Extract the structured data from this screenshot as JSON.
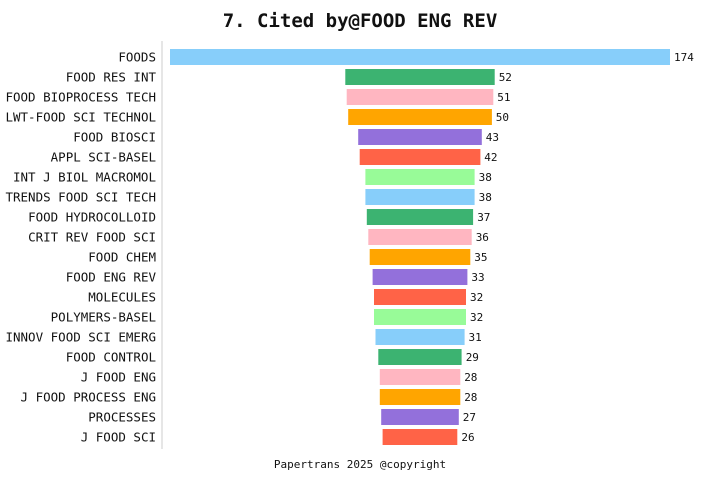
{
  "chart_data": {
    "type": "bar",
    "orientation": "horizontal",
    "layout": "centered",
    "title": "7. Cited by@FOOD ENG REV",
    "footer": "Papertrans 2025 @copyright",
    "grid": false,
    "xlim": [
      0,
      174
    ],
    "categories": [
      "FOODS",
      "FOOD RES INT",
      "FOOD BIOPROCESS TECH",
      "LWT-FOOD SCI TECHNOL",
      "FOOD BIOSCI",
      "APPL SCI-BASEL",
      "INT J BIOL MACROMOL",
      "TRENDS FOOD SCI TECH",
      "FOOD HYDROCOLLOID",
      "CRIT REV FOOD SCI",
      "FOOD CHEM",
      "FOOD ENG REV",
      "MOLECULES",
      "POLYMERS-BASEL",
      "INNOV FOOD SCI EMERG",
      "FOOD CONTROL",
      "J FOOD ENG",
      "J FOOD PROCESS ENG",
      "PROCESSES",
      "J FOOD SCI"
    ],
    "values": [
      174,
      52,
      51,
      50,
      43,
      42,
      38,
      38,
      37,
      36,
      35,
      33,
      32,
      32,
      31,
      29,
      28,
      28,
      27,
      26
    ],
    "colors": [
      "#87CEFA",
      "#3CB371",
      "#FFB6C1",
      "#FFA500",
      "#9370DB",
      "#FF6347",
      "#98FB98"
    ]
  }
}
